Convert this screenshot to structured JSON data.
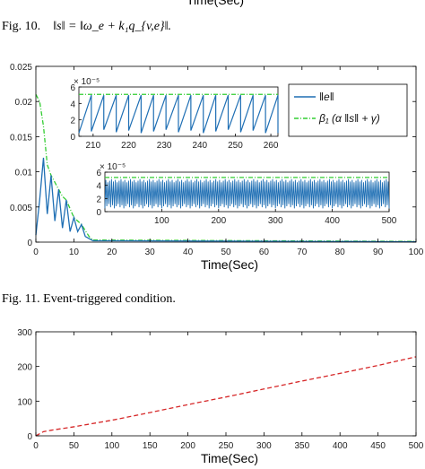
{
  "top_cut_label": "Time(Sec)",
  "fig10": {
    "prefix": "Fig. 10.",
    "equation": "‖s‖ = ‖ω_e + k₁q_{v,e}‖."
  },
  "fig11": {
    "caption": "Fig. 11.   Event-triggered condition."
  },
  "colors": {
    "blue": "#1f6fb4",
    "green": "#32cd32",
    "red": "#d62728",
    "axis": "#000000"
  },
  "chart_data": [
    {
      "id": "event-triggered-condition",
      "type": "line",
      "xlabel": "Time(Sec)",
      "xlim": [
        0,
        100
      ],
      "ylim": [
        0,
        0.025
      ],
      "xticks": [
        0,
        10,
        20,
        30,
        40,
        50,
        60,
        70,
        80,
        90,
        100
      ],
      "yticks": [
        0,
        0.005,
        0.01,
        0.015,
        0.02,
        0.025
      ],
      "ytick_labels": [
        "0",
        "0.005",
        "0.01",
        "0.015",
        "0.02",
        "0.025"
      ],
      "legend": {
        "placement": "right",
        "entries": [
          "‖e‖",
          "β₁ (α ‖s‖ + γ)"
        ]
      },
      "series": [
        {
          "name": "‖e‖",
          "color": "#1f6fb4",
          "style": "solid",
          "x": [
            0,
            1,
            2,
            3,
            4,
            5,
            6,
            7,
            8,
            9,
            10,
            11,
            12,
            13,
            14,
            15,
            100
          ],
          "y": [
            0.001,
            0.006,
            0.012,
            0.004,
            0.0095,
            0.003,
            0.0075,
            0.002,
            0.006,
            0.0015,
            0.0035,
            0.0015,
            0.0025,
            0.0008,
            0.0005,
            0.0002,
            5e-05
          ]
        },
        {
          "name": "β₁ (α ‖s‖ + γ)",
          "color": "#32cd32",
          "style": "dash-dot",
          "x": [
            0,
            1,
            2,
            3,
            4,
            5,
            6,
            7,
            8,
            10,
            12,
            14,
            15,
            100
          ],
          "y": [
            0.021,
            0.02,
            0.0165,
            0.011,
            0.0095,
            0.0085,
            0.0075,
            0.0065,
            0.006,
            0.0035,
            0.0025,
            0.0008,
            0.0003,
            0.0001
          ]
        }
      ],
      "insets": [
        {
          "id": "inset-zoom-210-260",
          "xlim": [
            206,
            262
          ],
          "ylim": [
            0,
            6
          ],
          "y_multiplier": "× 10⁻⁵",
          "xticks": [
            210,
            220,
            230,
            240,
            250,
            260
          ],
          "yticks": [
            0,
            2,
            4,
            6
          ],
          "sawtooth": {
            "x_start": 206,
            "x_end": 262,
            "count": 16,
            "peak": 5.0,
            "trough": 0.4
          },
          "threshold": 5.1
        },
        {
          "id": "inset-full-0-500",
          "xlim": [
            0,
            500
          ],
          "ylim": [
            0,
            6
          ],
          "y_multiplier": "× 10⁻⁵",
          "xticks": [
            100,
            200,
            300,
            400,
            500
          ],
          "yticks": [
            0,
            2,
            4,
            6
          ],
          "band": {
            "low": 0.5,
            "high": 5.0
          },
          "threshold": 5.2
        }
      ]
    },
    {
      "id": "trigger-count",
      "type": "line",
      "xlabel": "Time(Sec)",
      "xlim": [
        0,
        500
      ],
      "ylim": [
        0,
        300
      ],
      "xticks": [
        0,
        50,
        100,
        150,
        200,
        250,
        300,
        350,
        400,
        450,
        500
      ],
      "yticks": [
        0,
        100,
        200,
        300
      ],
      "series": [
        {
          "color": "#d62728",
          "style": "dashed",
          "x": [
            0,
            10,
            20,
            50,
            100,
            150,
            200,
            250,
            300,
            350,
            400,
            450,
            500
          ],
          "y": [
            0,
            12,
            16,
            26,
            45,
            67,
            90,
            112,
            135,
            158,
            180,
            203,
            228
          ]
        }
      ]
    }
  ]
}
